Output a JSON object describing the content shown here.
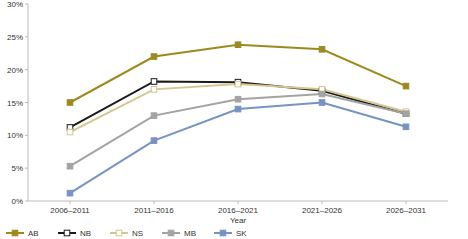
{
  "chart_data": {
    "type": "line",
    "x_label": "Year",
    "categories": [
      "2006–2011",
      "2011–2016",
      "2016–2021",
      "2021–2026",
      "2026–2031"
    ],
    "series": [
      {
        "name": "AB",
        "color": "#9c8a1e",
        "marker": "square",
        "values": [
          15.0,
          22.0,
          23.8,
          23.1,
          17.5
        ]
      },
      {
        "name": "NB",
        "color": "#1a1a1a",
        "marker": "square-open",
        "values": [
          11.2,
          18.2,
          18.1,
          16.8,
          13.3
        ]
      },
      {
        "name": "NS",
        "color": "#d6c590",
        "marker": "square-open",
        "values": [
          10.5,
          17.0,
          17.8,
          17.0,
          13.6
        ]
      },
      {
        "name": "MB",
        "color": "#a3a3a3",
        "marker": "square",
        "values": [
          5.3,
          13.0,
          15.5,
          16.3,
          13.3
        ]
      },
      {
        "name": "SK",
        "color": "#7693c2",
        "marker": "square",
        "values": [
          1.2,
          9.2,
          14.0,
          15.0,
          11.3
        ]
      }
    ],
    "ylim": [
      0,
      30
    ],
    "yticks": [
      {
        "value": 0,
        "label": "0%"
      },
      {
        "value": 5,
        "label": "5%"
      },
      {
        "value": 10,
        "label": "10%"
      },
      {
        "value": 15,
        "label": "15%"
      },
      {
        "value": 20,
        "label": "20%"
      },
      {
        "value": 25,
        "label": "25%"
      },
      {
        "value": 30,
        "label": "30%"
      }
    ],
    "grid": false,
    "legend": "bottom"
  }
}
